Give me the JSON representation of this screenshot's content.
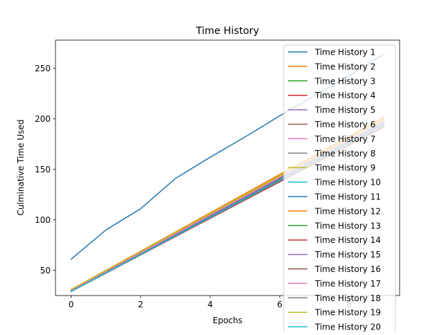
{
  "chart_data": {
    "type": "line",
    "title": "Time History",
    "xlabel": "Epochs",
    "ylabel": "Culminative Time Used",
    "xlim": [
      -0.45,
      9.45
    ],
    "ylim": [
      25,
      278
    ],
    "xticks": [
      0,
      2,
      4,
      6,
      8
    ],
    "yticks": [
      50,
      100,
      150,
      200,
      250
    ],
    "legend_position": "top-right",
    "grid": false,
    "series": [
      {
        "name": "Time History 1",
        "color": "#1f77b4",
        "x": [
          0,
          1,
          2,
          3,
          4,
          5,
          6,
          7,
          8,
          9
        ],
        "values": [
          61,
          90,
          111,
          141,
          162,
          182,
          203,
          223,
          243,
          264
        ]
      },
      {
        "name": "Time History 2",
        "color": "#ff7f0e",
        "x": [
          0,
          9
        ],
        "values": [
          31,
          201
        ]
      },
      {
        "name": "Time History 3",
        "color": "#2ca02c",
        "x": [
          0,
          9
        ],
        "values": [
          30,
          198
        ]
      },
      {
        "name": "Time History 4",
        "color": "#d62728",
        "x": [
          0,
          9
        ],
        "values": [
          29,
          193
        ]
      },
      {
        "name": "Time History 5",
        "color": "#9467bd",
        "x": [
          0,
          9
        ],
        "values": [
          30,
          196
        ]
      },
      {
        "name": "Time History 6",
        "color": "#8c564b",
        "x": [
          0,
          9
        ],
        "values": [
          29,
          194
        ]
      },
      {
        "name": "Time History 7",
        "color": "#e377c2",
        "x": [
          0,
          9
        ],
        "values": [
          30,
          197
        ]
      },
      {
        "name": "Time History 8",
        "color": "#7f7f7f",
        "x": [
          0,
          9
        ],
        "values": [
          29,
          195
        ]
      },
      {
        "name": "Time History 9",
        "color": "#bcbd22",
        "x": [
          0,
          9
        ],
        "values": [
          30,
          199
        ]
      },
      {
        "name": "Time History 10",
        "color": "#17becf",
        "x": [
          0,
          9
        ],
        "values": [
          29,
          195
        ]
      },
      {
        "name": "Time History 11",
        "color": "#1f77b4",
        "x": [
          0,
          9
        ],
        "values": [
          30,
          196
        ]
      },
      {
        "name": "Time History 12",
        "color": "#ff7f0e",
        "x": [
          0,
          9
        ],
        "values": [
          31,
          202
        ]
      },
      {
        "name": "Time History 13",
        "color": "#2ca02c",
        "x": [
          0,
          9
        ],
        "values": [
          29,
          194
        ]
      },
      {
        "name": "Time History 14",
        "color": "#d62728",
        "x": [
          0,
          9
        ],
        "values": [
          29,
          192
        ]
      },
      {
        "name": "Time History 15",
        "color": "#9467bd",
        "x": [
          0,
          9
        ],
        "values": [
          30,
          197
        ]
      },
      {
        "name": "Time History 16",
        "color": "#8c564b",
        "x": [
          0,
          9
        ],
        "values": [
          29,
          193
        ]
      },
      {
        "name": "Time History 17",
        "color": "#e377c2",
        "x": [
          0,
          9
        ],
        "values": [
          30,
          198
        ]
      },
      {
        "name": "Time History 18",
        "color": "#7f7f7f",
        "x": [
          0,
          9
        ],
        "values": [
          29,
          195
        ]
      },
      {
        "name": "Time History 19",
        "color": "#bcbd22",
        "x": [
          0,
          9
        ],
        "values": [
          31,
          200
        ]
      },
      {
        "name": "Time History 20",
        "color": "#17becf",
        "x": [
          0,
          9
        ],
        "values": [
          29,
          194
        ]
      }
    ]
  }
}
